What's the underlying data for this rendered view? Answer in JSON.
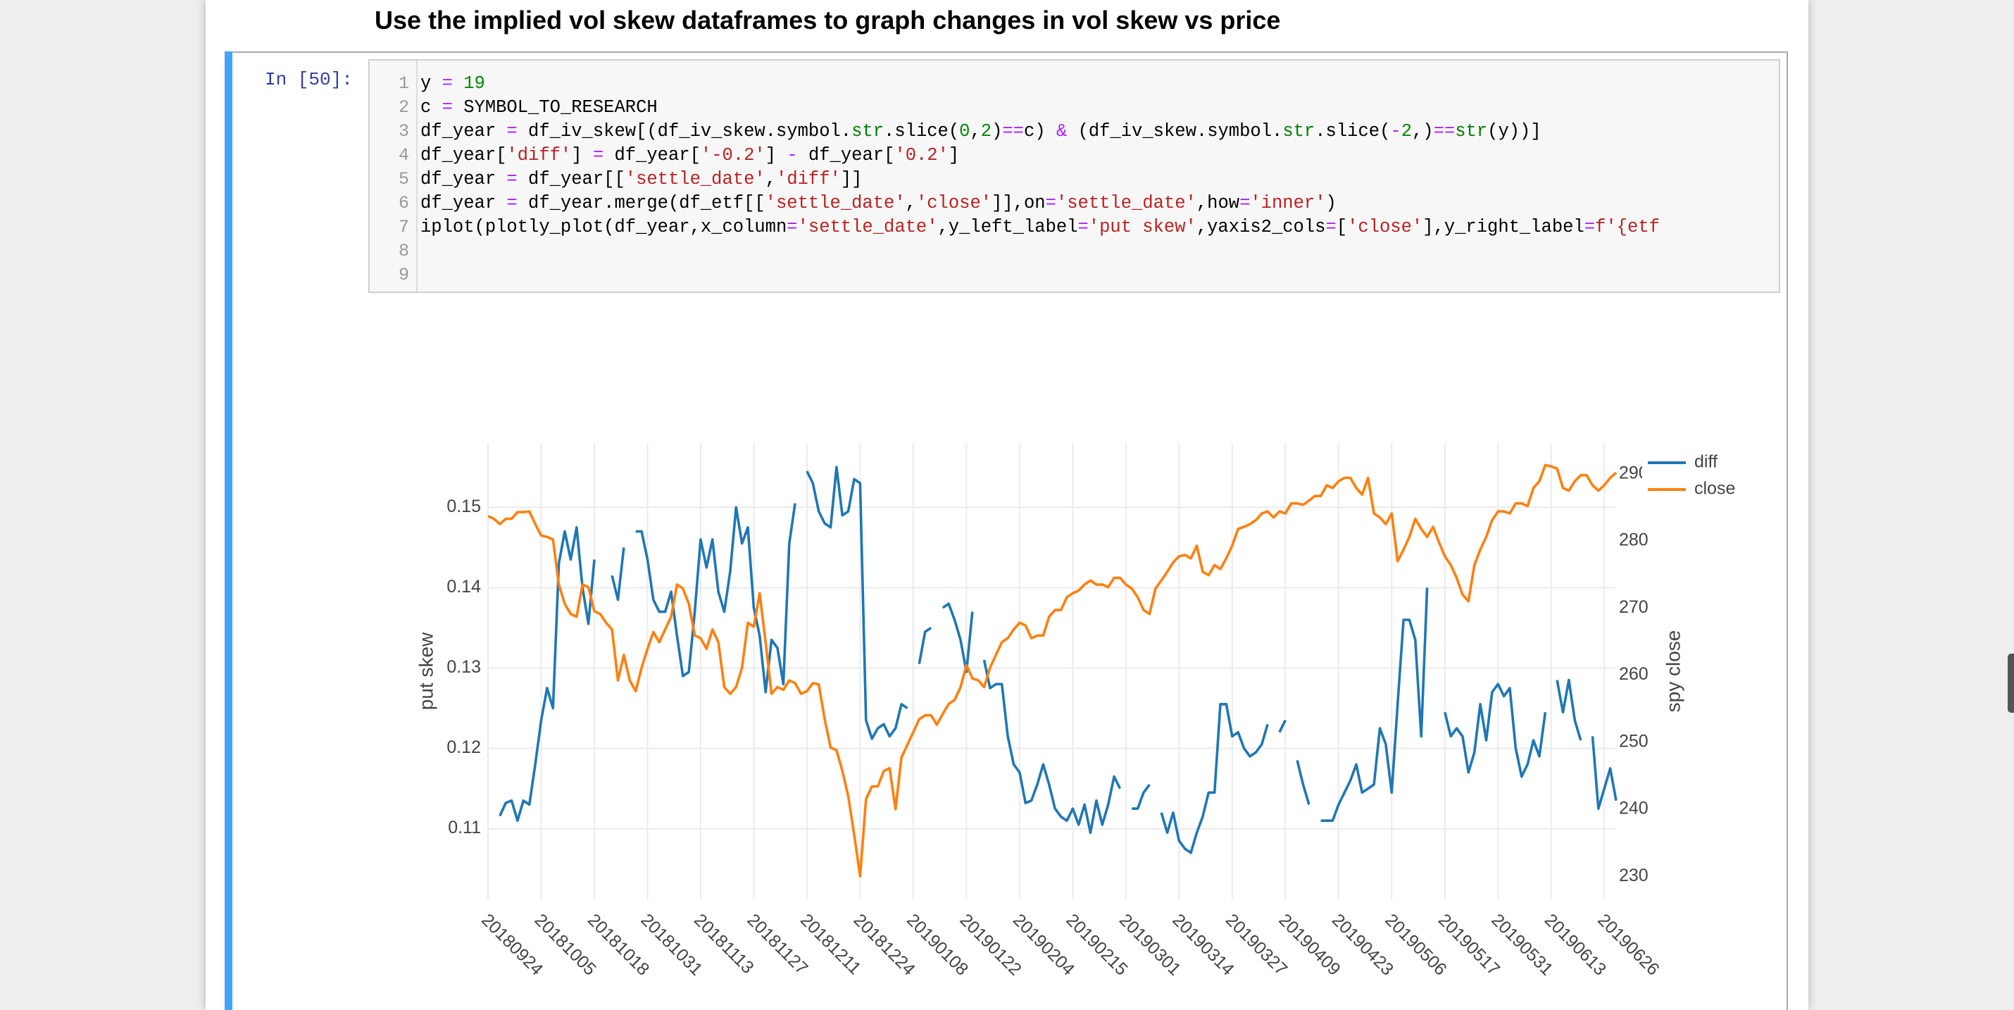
{
  "heading": "Use the implied vol skew dataframes to graph changes in vol skew vs price",
  "cell": {
    "prompt": "In [50]:",
    "line_numbers": [
      1,
      2,
      3,
      4,
      5,
      6,
      7,
      8,
      9
    ],
    "code_lines": [
      "y = 19",
      "c = SYMBOL_TO_RESEARCH",
      "df_year = df_iv_skew[(df_iv_skew.symbol.str.slice(0,2)==c) & (df_iv_skew.symbol.str.slice(-2,)==str(y))]",
      "df_year['diff'] = df_year['-0.2'] - df_year['0.2']",
      "df_year = df_year[['settle_date','diff']]",
      "df_year = df_year.merge(df_etf[['settle_date','close']],on='settle_date',how='inner')",
      "iplot(plotly_plot(df_year,x_column='settle_date',y_left_label='put skew',yaxis2_cols=['close'],y_right_label=f'{etf"
    ]
  },
  "chart_data": {
    "type": "line",
    "ylabel": "put skew",
    "y2label": "spy close",
    "grid": true,
    "legend": "top-right",
    "ylim": [
      0.1012,
      0.158
    ],
    "yticks": [
      0.11,
      0.12,
      0.13,
      0.14,
      0.15
    ],
    "y2lim": [
      226.55,
      294.6
    ],
    "y2ticks": [
      230,
      240,
      250,
      260,
      270,
      280,
      290
    ],
    "categories": [
      "20180924",
      null,
      null,
      null,
      null,
      null,
      null,
      null,
      null,
      "20181005",
      null,
      null,
      null,
      null,
      null,
      null,
      null,
      null,
      "20181018",
      null,
      null,
      null,
      null,
      null,
      null,
      null,
      null,
      "20181031",
      null,
      null,
      null,
      null,
      null,
      null,
      null,
      null,
      "20181113",
      null,
      null,
      null,
      null,
      null,
      null,
      null,
      null,
      "20181127",
      null,
      null,
      null,
      null,
      null,
      null,
      null,
      null,
      "20181211",
      null,
      null,
      null,
      null,
      null,
      null,
      null,
      null,
      "20181224",
      null,
      null,
      null,
      null,
      null,
      null,
      null,
      null,
      "20190108",
      null,
      null,
      null,
      null,
      null,
      null,
      null,
      null,
      "20190122",
      null,
      null,
      null,
      null,
      null,
      null,
      null,
      null,
      "20190204",
      null,
      null,
      null,
      null,
      null,
      null,
      null,
      null,
      "20190215",
      null,
      null,
      null,
      null,
      null,
      null,
      null,
      null,
      "20190301",
      null,
      null,
      null,
      null,
      null,
      null,
      null,
      null,
      "20190314",
      null,
      null,
      null,
      null,
      null,
      null,
      null,
      null,
      "20190327",
      null,
      null,
      null,
      null,
      null,
      null,
      null,
      null,
      "20190409",
      null,
      null,
      null,
      null,
      null,
      null,
      null,
      null,
      "20190423",
      null,
      null,
      null,
      null,
      null,
      null,
      null,
      null,
      "20190506",
      null,
      null,
      null,
      null,
      null,
      null,
      null,
      null,
      "20190517",
      null,
      null,
      null,
      null,
      null,
      null,
      null,
      null,
      "20190531",
      null,
      null,
      null,
      null,
      null,
      null,
      null,
      null,
      "20190613",
      null,
      null,
      null,
      null,
      null,
      null,
      null,
      null,
      "20190626",
      null,
      null
    ],
    "series": [
      {
        "name": "diff",
        "color": "#1f77b4",
        "values": [
          null,
          null,
          0.1116,
          0.1132,
          0.1135,
          0.111,
          0.1135,
          0.113,
          0.118,
          0.1235,
          0.1275,
          0.125,
          0.143,
          0.147,
          0.1435,
          0.1475,
          0.14,
          0.1355,
          0.1435,
          null,
          null,
          0.1415,
          0.1385,
          0.145,
          null,
          0.147,
          0.147,
          0.1435,
          0.1385,
          0.137,
          0.137,
          0.1395,
          0.134,
          0.129,
          0.1295,
          0.137,
          0.146,
          0.1425,
          0.146,
          0.1395,
          0.137,
          0.142,
          0.15,
          0.1455,
          0.1475,
          0.1375,
          0.134,
          0.127,
          0.1335,
          0.1325,
          0.128,
          0.1455,
          0.1505,
          null,
          0.1545,
          0.153,
          0.1495,
          0.148,
          0.1475,
          0.155,
          0.149,
          0.1495,
          0.1535,
          0.153,
          0.1235,
          0.1212,
          0.1225,
          0.123,
          0.1215,
          0.1225,
          0.1255,
          0.125,
          null,
          0.1305,
          0.1345,
          0.135,
          null,
          0.1375,
          0.138,
          0.136,
          0.1335,
          0.1295,
          0.137,
          null,
          0.131,
          0.1275,
          0.128,
          0.128,
          0.1215,
          0.118,
          0.117,
          0.1132,
          0.1135,
          0.1155,
          0.118,
          0.1155,
          0.1125,
          0.1115,
          0.111,
          0.1125,
          0.1105,
          0.113,
          0.1095,
          0.1135,
          0.1105,
          0.113,
          0.1165,
          0.115,
          null,
          0.1125,
          0.1125,
          0.1145,
          0.1155,
          null,
          0.112,
          0.1095,
          0.112,
          0.1085,
          0.1075,
          0.107,
          0.1095,
          0.1115,
          0.1145,
          0.1145,
          0.1255,
          0.1255,
          0.1215,
          0.122,
          0.12,
          0.119,
          0.1195,
          0.1205,
          0.123,
          null,
          0.122,
          0.1235,
          null,
          0.1185,
          0.1155,
          0.113,
          null,
          0.111,
          0.111,
          0.111,
          0.113,
          0.1145,
          0.116,
          0.118,
          0.1145,
          0.115,
          0.1155,
          0.1225,
          0.1205,
          0.1145,
          0.1255,
          0.136,
          0.136,
          0.1335,
          0.1215,
          0.14,
          null,
          null,
          0.1245,
          0.1215,
          0.1225,
          0.1215,
          0.117,
          0.1195,
          0.1255,
          0.121,
          0.127,
          0.128,
          0.1265,
          0.1275,
          0.12,
          0.1165,
          0.118,
          0.121,
          0.119,
          0.1245,
          null,
          0.1285,
          0.1245,
          0.1285,
          0.1235,
          0.121,
          null,
          0.1215,
          0.1125,
          0.115,
          0.1175,
          0.1135
        ]
      },
      {
        "name": "close",
        "color": "#ff7f0e",
        "axis": "y2",
        "values": [
          283.7,
          283.3,
          282.5,
          283.3,
          283.3,
          284.3,
          284.3,
          284.4,
          282.5,
          280.8,
          280.6,
          280.2,
          273.5,
          270.6,
          269.1,
          268.7,
          273.5,
          273.1,
          269.5,
          269.1,
          267.8,
          266.8,
          259.2,
          263,
          259.2,
          257.6,
          261.1,
          263.9,
          266.4,
          264.9,
          266.8,
          268.7,
          273.5,
          272.9,
          270.6,
          265.9,
          265.5,
          263.9,
          266.8,
          264.9,
          258.2,
          257.2,
          258.2,
          261.1,
          267.8,
          267.2,
          272.2,
          264.9,
          257.2,
          258.2,
          257.8,
          259.2,
          258.8,
          257.2,
          257.6,
          258.8,
          258.6,
          253.4,
          249.2,
          248.8,
          245.7,
          241.9,
          236.2,
          230,
          241.5,
          243.4,
          243.4,
          245.7,
          246.1,
          240,
          247.7,
          249.6,
          251.5,
          253.4,
          254,
          254,
          252.6,
          254.2,
          255.7,
          256.3,
          258.2,
          261.5,
          259.5,
          259.2,
          258.2,
          261.1,
          263,
          264.9,
          265.5,
          266.8,
          267.8,
          267.4,
          265.5,
          265.9,
          265.9,
          268.7,
          269.7,
          269.7,
          271.6,
          272.2,
          272.6,
          273.5,
          274.1,
          273.5,
          273.5,
          273.1,
          274.5,
          274.5,
          273.5,
          272.9,
          271.6,
          269.7,
          269.1,
          272.9,
          274.1,
          275.4,
          276.8,
          277.7,
          277.9,
          277.4,
          279.3,
          275.4,
          274.9,
          276.4,
          275.8,
          277.4,
          279.3,
          281.8,
          282.1,
          282.5,
          283.1,
          284.1,
          284.4,
          283.5,
          284.4,
          284.1,
          285.6,
          285.6,
          285.4,
          286,
          286.7,
          286.7,
          288.3,
          287.9,
          288.9,
          289.4,
          289.4,
          287.9,
          286.9,
          289.4,
          284.1,
          283.5,
          282.5,
          284.1,
          277,
          278.7,
          280.6,
          283.3,
          281.8,
          280.6,
          282.1,
          279.8,
          277.7,
          276.4,
          274.5,
          272,
          271,
          276.4,
          278.7,
          280.6,
          283.1,
          284.4,
          284.4,
          284.1,
          285.6,
          285.6,
          285.2,
          287.9,
          288.9,
          291.3,
          291.1,
          290.8,
          287.9,
          287.5,
          288.9,
          289.8,
          289.8,
          288.3,
          287.5,
          288.3,
          289.4,
          290.2
        ]
      }
    ]
  }
}
